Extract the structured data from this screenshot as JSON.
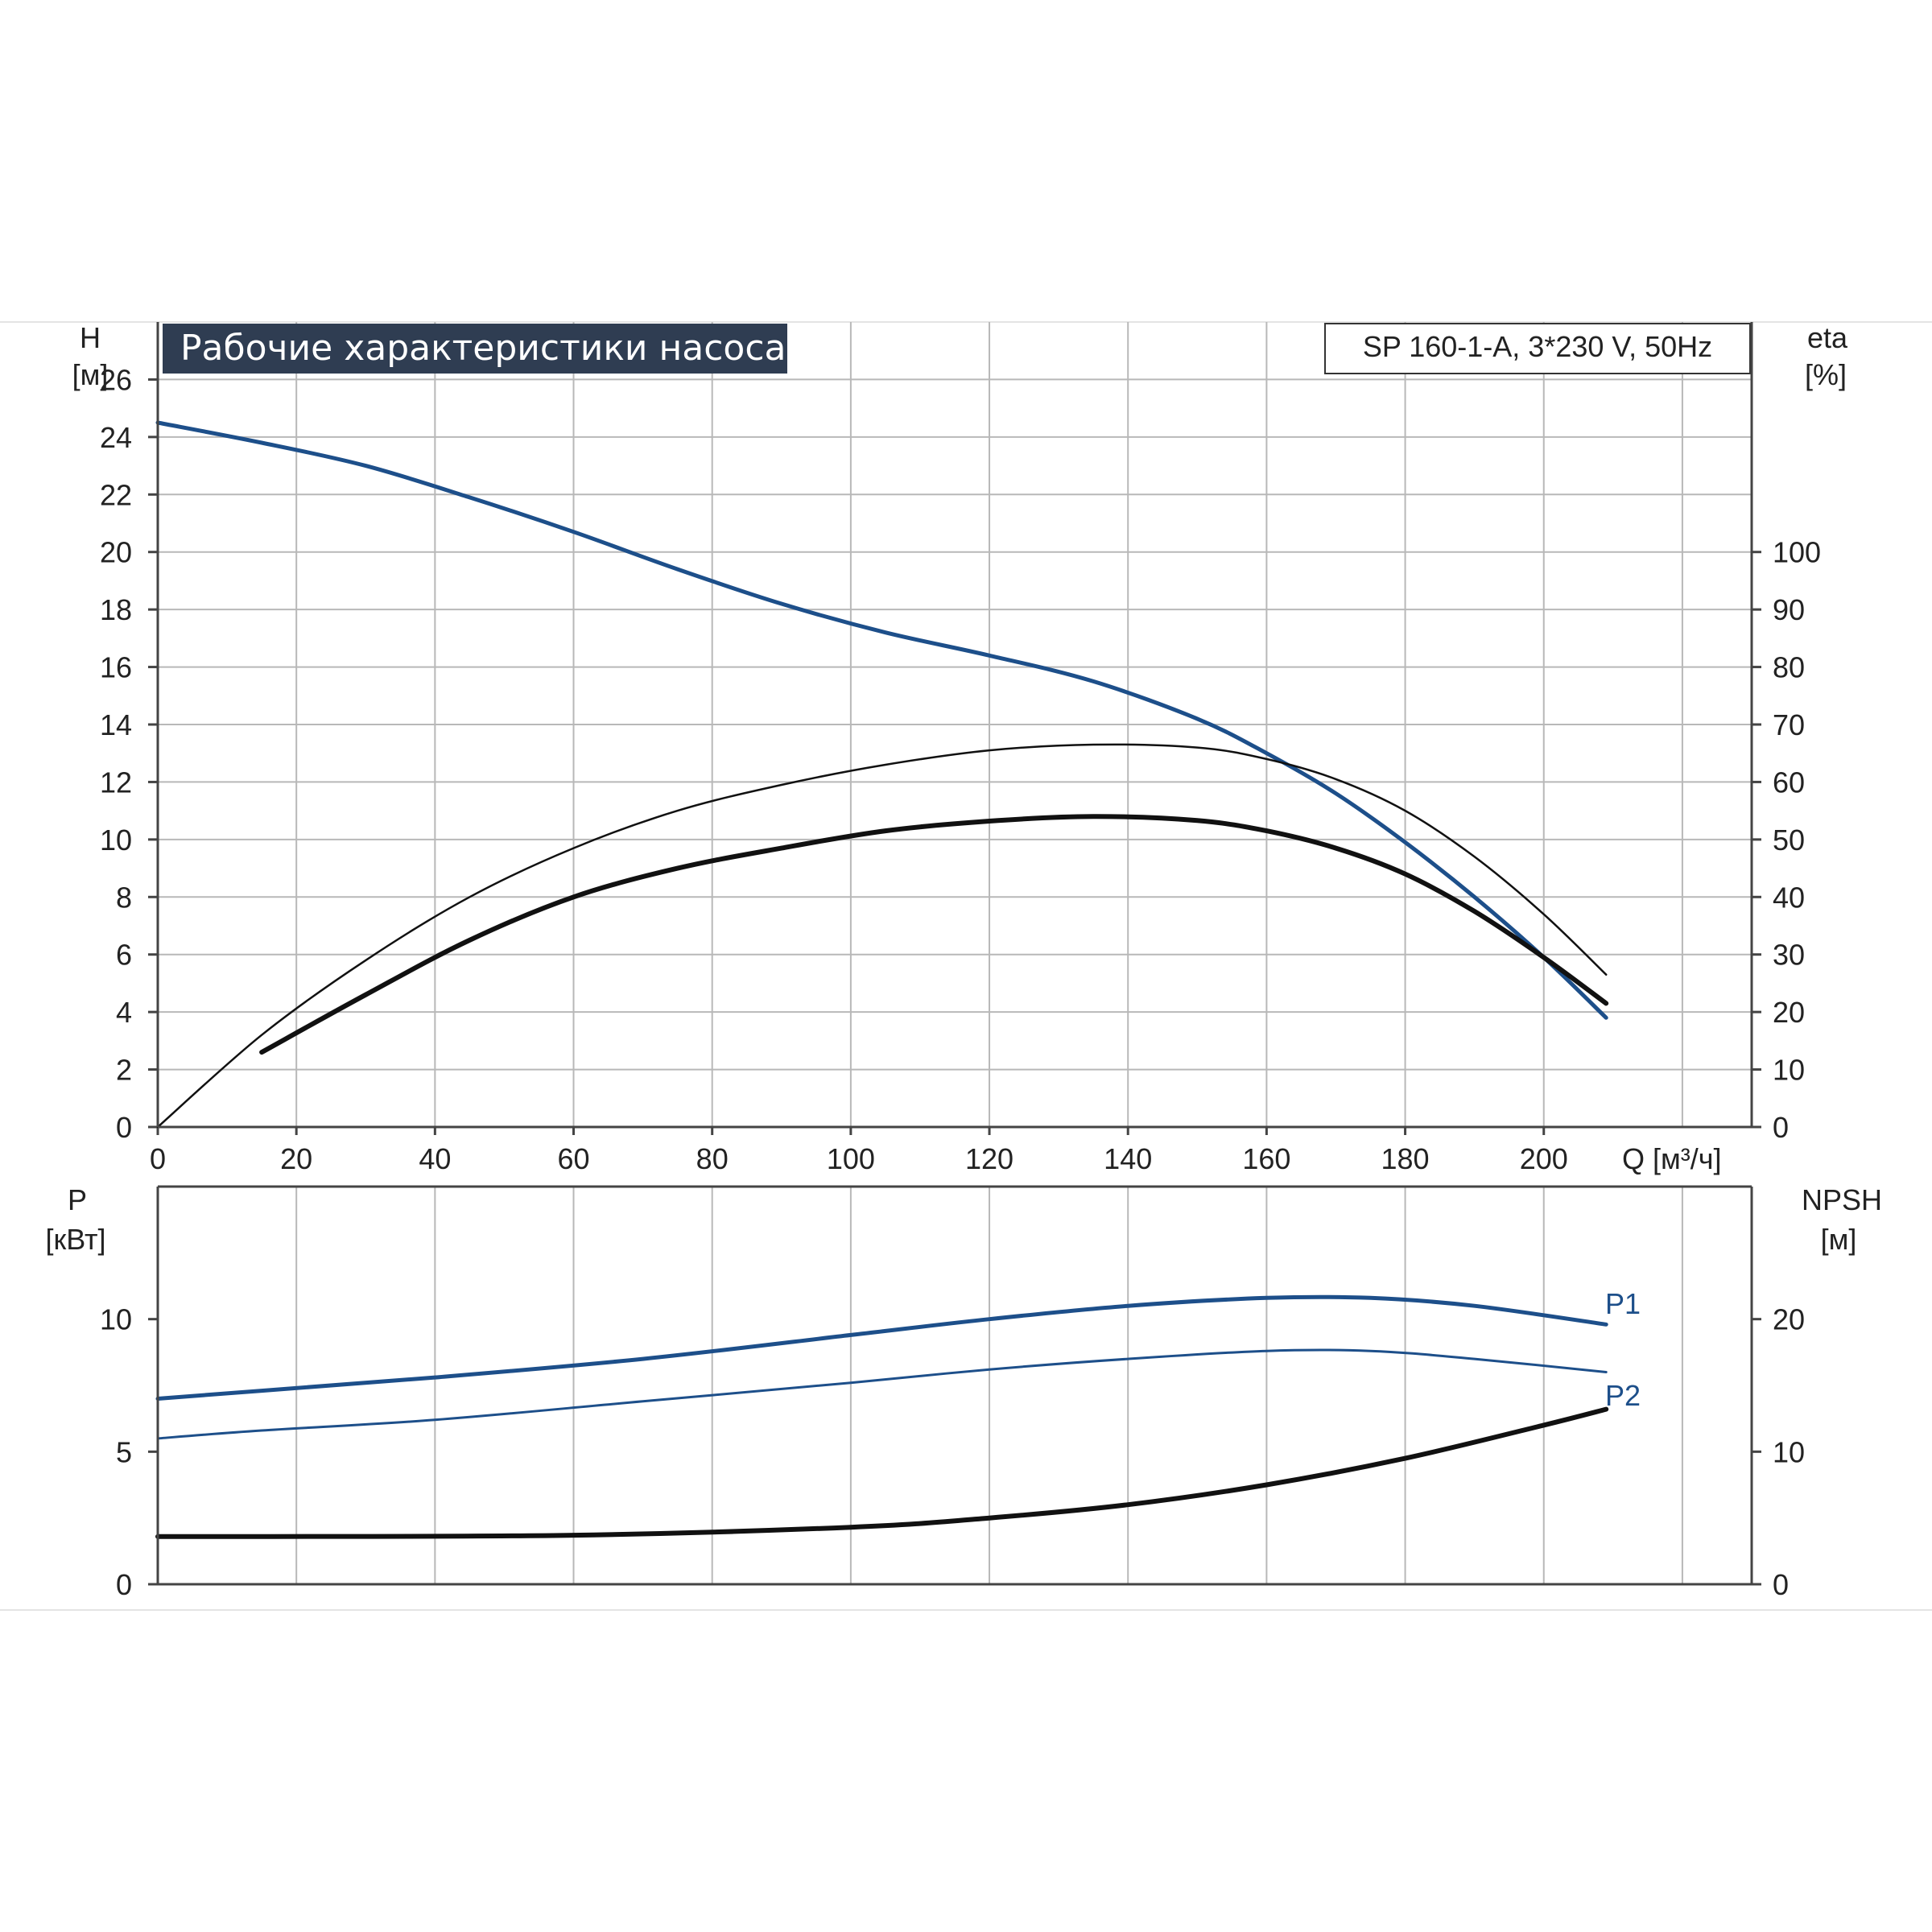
{
  "title": "Рабочие характеристики насоса",
  "model_label": "SP 160-1-A, 3*230 V, 50Hz",
  "colors": {
    "blue": "#1d4f8a",
    "black": "#111111",
    "grid": "#b8b8b8",
    "title_bg": "#2f3d52"
  },
  "chart_data": [
    {
      "type": "line",
      "panel": "top",
      "xlabel": "Q [м³/ч]",
      "xlim": [
        0,
        230
      ],
      "xticks": [
        0,
        20,
        40,
        60,
        80,
        100,
        120,
        140,
        160,
        180,
        200
      ],
      "y_left_label": [
        "H",
        "[м]"
      ],
      "y_left_lim": [
        0,
        28
      ],
      "y_left_ticks": [
        0,
        2,
        4,
        6,
        8,
        10,
        12,
        14,
        16,
        18,
        20,
        22,
        24,
        26
      ],
      "y_right_label": [
        "eta",
        "[%]"
      ],
      "y_right_lim": [
        0,
        140
      ],
      "y_right_ticks": [
        0,
        10,
        20,
        30,
        40,
        50,
        60,
        70,
        80,
        90,
        100
      ],
      "grid": true,
      "series": [
        {
          "id": "head",
          "axis": "left",
          "color": "blue",
          "x": [
            0,
            15,
            30,
            45,
            60,
            75,
            90,
            105,
            120,
            135,
            150,
            160,
            170,
            180,
            190,
            200,
            209
          ],
          "y": [
            24.5,
            23.8,
            23.0,
            21.9,
            20.7,
            19.4,
            18.2,
            17.2,
            16.4,
            15.5,
            14.2,
            13.0,
            11.6,
            9.9,
            8.0,
            5.9,
            3.8
          ]
        },
        {
          "id": "eta-thin",
          "axis": "right",
          "color": "black",
          "x": [
            0,
            15,
            30,
            45,
            60,
            75,
            90,
            105,
            120,
            135,
            150,
            160,
            170,
            180,
            190,
            200,
            209
          ],
          "y": [
            0,
            16,
            29,
            40,
            48.5,
            55,
            59.5,
            63,
            65.5,
            66.5,
            66,
            64,
            60.5,
            55,
            47,
            37,
            26.5
          ]
        },
        {
          "id": "eta-thick",
          "axis": "right",
          "color": "black",
          "x": [
            15,
            30,
            45,
            60,
            75,
            90,
            105,
            120,
            135,
            150,
            160,
            170,
            180,
            190,
            200,
            209
          ],
          "y": [
            13,
            23,
            32.5,
            40,
            45,
            48.5,
            51.5,
            53.2,
            54,
            53.3,
            51.5,
            48.5,
            44,
            37.5,
            29.5,
            21.5
          ]
        }
      ]
    },
    {
      "type": "line",
      "panel": "bottom",
      "xlim": [
        0,
        230
      ],
      "y_left_label": [
        "P",
        "[кВт]"
      ],
      "y_left_lim": [
        0,
        15
      ],
      "y_left_ticks": [
        0,
        5,
        10
      ],
      "y_right_label": [
        "NPSH",
        "[м]"
      ],
      "y_right_lim": [
        0,
        30
      ],
      "y_right_ticks": [
        0,
        10,
        20
      ],
      "grid": true,
      "series": [
        {
          "name": "P1",
          "axis": "left",
          "color": "blue",
          "x": [
            0,
            15,
            40,
            70,
            100,
            120,
            140,
            160,
            175,
            190,
            209
          ],
          "y": [
            7.0,
            7.3,
            7.8,
            8.5,
            9.4,
            10.0,
            10.5,
            10.8,
            10.8,
            10.5,
            9.8
          ]
        },
        {
          "name": "P2",
          "axis": "left",
          "color": "blue",
          "x": [
            0,
            15,
            40,
            70,
            100,
            120,
            140,
            160,
            175,
            190,
            209
          ],
          "y": [
            5.5,
            5.8,
            6.2,
            6.9,
            7.6,
            8.1,
            8.5,
            8.8,
            8.8,
            8.5,
            8.0
          ]
        },
        {
          "id": "npsh",
          "axis": "right",
          "color": "black",
          "x": [
            0,
            15,
            60,
            100,
            120,
            140,
            160,
            180,
            200,
            209
          ],
          "y": [
            3.6,
            3.6,
            3.7,
            4.3,
            5.0,
            6.0,
            7.5,
            9.5,
            12.0,
            13.2
          ]
        }
      ]
    }
  ]
}
